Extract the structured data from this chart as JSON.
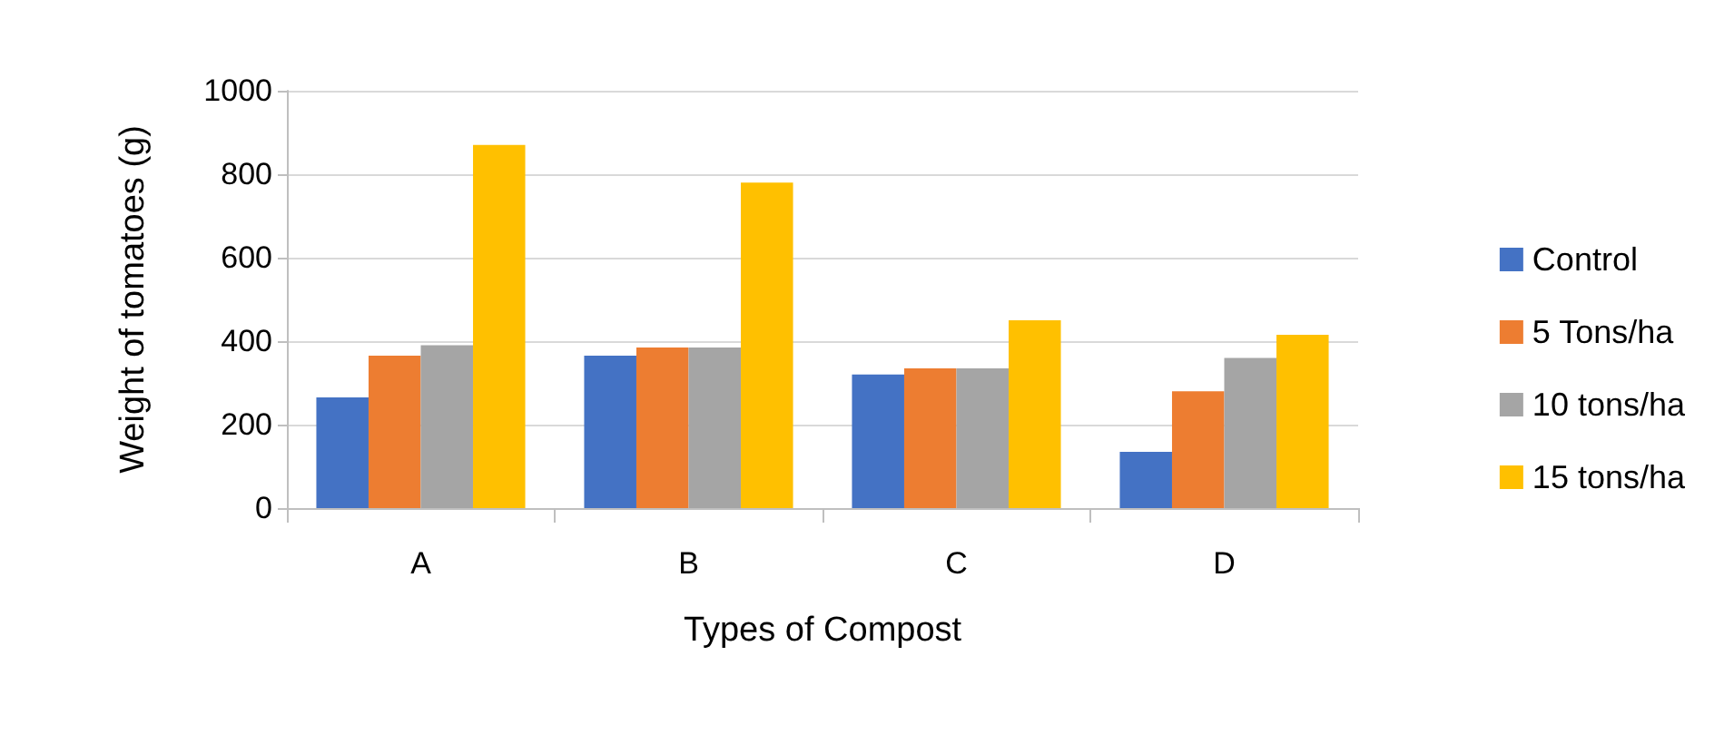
{
  "chart_data": {
    "type": "bar",
    "xlabel": "Types of Compost",
    "ylabel": "Weight of tomatoes (g)",
    "categories": [
      "A",
      "B",
      "C",
      "D"
    ],
    "series": [
      {
        "name": "Control",
        "color": "#4472c4",
        "values": [
          265,
          365,
          320,
          135
        ]
      },
      {
        "name": "5 Tons/ha",
        "color": "#ed7d31",
        "values": [
          365,
          385,
          335,
          280
        ]
      },
      {
        "name": "10 tons/ha",
        "color": "#a5a5a5",
        "values": [
          390,
          385,
          335,
          360
        ]
      },
      {
        "name": "15 tons/ha",
        "color": "#ffc000",
        "values": [
          870,
          780,
          450,
          415
        ]
      }
    ],
    "ylim": [
      0,
      1000
    ],
    "yticks": [
      0,
      200,
      400,
      600,
      800,
      1000
    ],
    "grid": "y",
    "legend": "right"
  }
}
